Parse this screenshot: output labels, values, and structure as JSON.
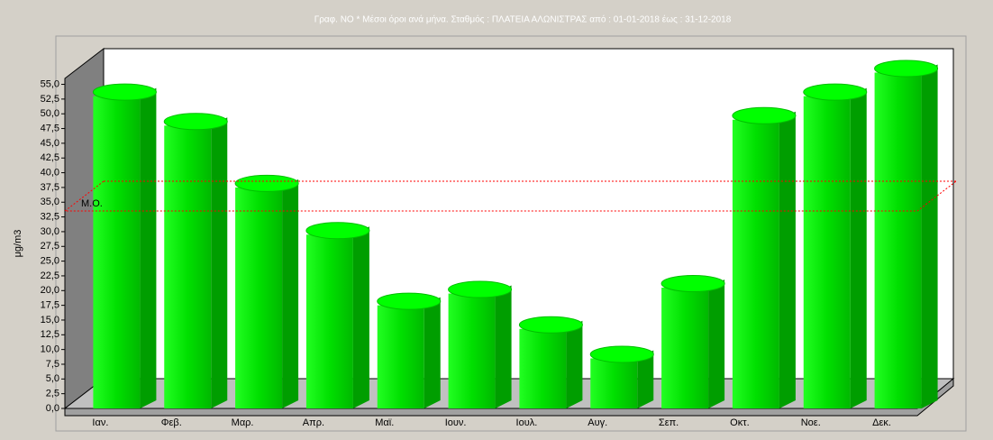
{
  "chart_data": {
    "type": "bar3d",
    "title": "Γραφ. NO * Μέσοι όροι ανά μήνα. Σταθμός : ΠΛΑΤΕΙΑ ΑΛΩΝΙΣΤΡΑΣ από : 01-01-2018   έως : 31-12-2018",
    "y_label": "μg/m3",
    "categories": [
      "Ιαν.",
      "Φεβ.",
      "Μαρ.",
      "Απρ.",
      "Μαϊ.",
      "Ιουν.",
      "Ιουλ.",
      "Αυγ.",
      "Σεπ.",
      "Οκτ.",
      "Νοε.",
      "Δεκ."
    ],
    "values": [
      53,
      48,
      37.5,
      29.5,
      17.5,
      19.5,
      13.5,
      8.5,
      20.5,
      49,
      53,
      57
    ],
    "color": "#00cc00",
    "ylim": [
      0,
      56
    ],
    "yticks": [
      {
        "value": 0,
        "label": "0,0"
      },
      {
        "value": 2.5,
        "label": "2,5"
      },
      {
        "value": 5,
        "label": "5,0"
      },
      {
        "value": 7.5,
        "label": "7,5"
      },
      {
        "value": 10,
        "label": "10,0"
      },
      {
        "value": 12.5,
        "label": "12,5"
      },
      {
        "value": 15,
        "label": "15,0"
      },
      {
        "value": 17.5,
        "label": "17,5"
      },
      {
        "value": 20,
        "label": "20,0"
      },
      {
        "value": 22.5,
        "label": "22,5"
      },
      {
        "value": 25,
        "label": "25,0"
      },
      {
        "value": 27.5,
        "label": "27,5"
      },
      {
        "value": 30,
        "label": "30,0"
      },
      {
        "value": 32.5,
        "label": "32,5"
      },
      {
        "value": 35,
        "label": "35,0"
      },
      {
        "value": 37.5,
        "label": "37,5"
      },
      {
        "value": 40,
        "label": "40,0"
      },
      {
        "value": 42.5,
        "label": "42,5"
      },
      {
        "value": 45,
        "label": "45,0"
      },
      {
        "value": 47.5,
        "label": "47,5"
      },
      {
        "value": 50,
        "label": "50,0"
      },
      {
        "value": 52.5,
        "label": "52,5"
      },
      {
        "value": 55,
        "label": "55,0"
      }
    ],
    "mean": {
      "label": "Μ.Ο.",
      "value": 33.5,
      "color": "#ff0000"
    }
  }
}
